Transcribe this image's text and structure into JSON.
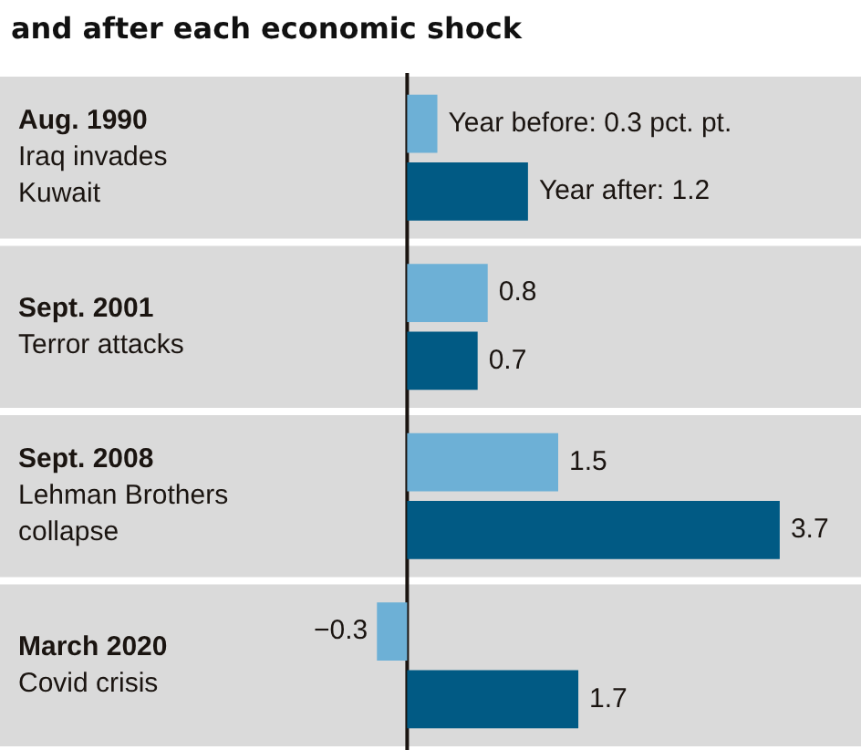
{
  "chart_data": {
    "type": "bar",
    "orientation": "horizontal",
    "title": "and after each economic shock",
    "categories": [
      "Aug. 1990\nIraq invades\nKuwait",
      "Sept. 2001\nTerror attacks",
      "Sept. 2008\nLehman Brothers\ncollapse",
      "March 2020\nCovid crisis"
    ],
    "series": [
      {
        "color": "#6db0d6",
        "values": [
          0.3,
          0.8,
          1.5,
          -0.3
        ],
        "value_labels": [
          "Year before: 0.3 pct. pt.",
          "0.8",
          "1.5",
          "−0.3"
        ]
      },
      {
        "color": "#015a84",
        "values": [
          1.2,
          0.7,
          3.7,
          1.7
        ],
        "value_labels": [
          "Year after: 1.2",
          "0.7",
          "3.7",
          "1.7"
        ]
      }
    ],
    "tick_labels": "y",
    "legend": false
  }
}
